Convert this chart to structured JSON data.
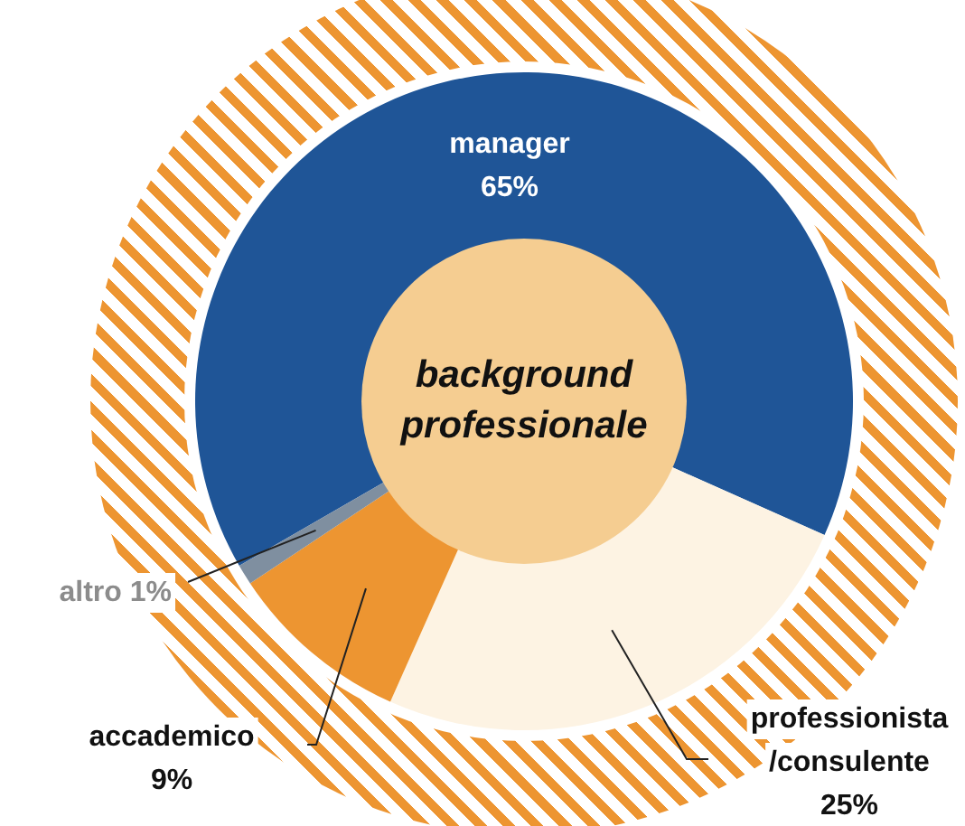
{
  "chart_data": {
    "type": "donut",
    "title": "background professionale",
    "categories": [
      "manager",
      "professionista /consulente",
      "accademico",
      "altro"
    ],
    "values": [
      65,
      25,
      9,
      1
    ],
    "colors": [
      "#1f5597",
      "#fdf3e3",
      "#ed9531",
      "#7f8fa0"
    ],
    "value_labels": [
      "65%",
      "25%",
      "9%",
      "1%"
    ]
  }
}
